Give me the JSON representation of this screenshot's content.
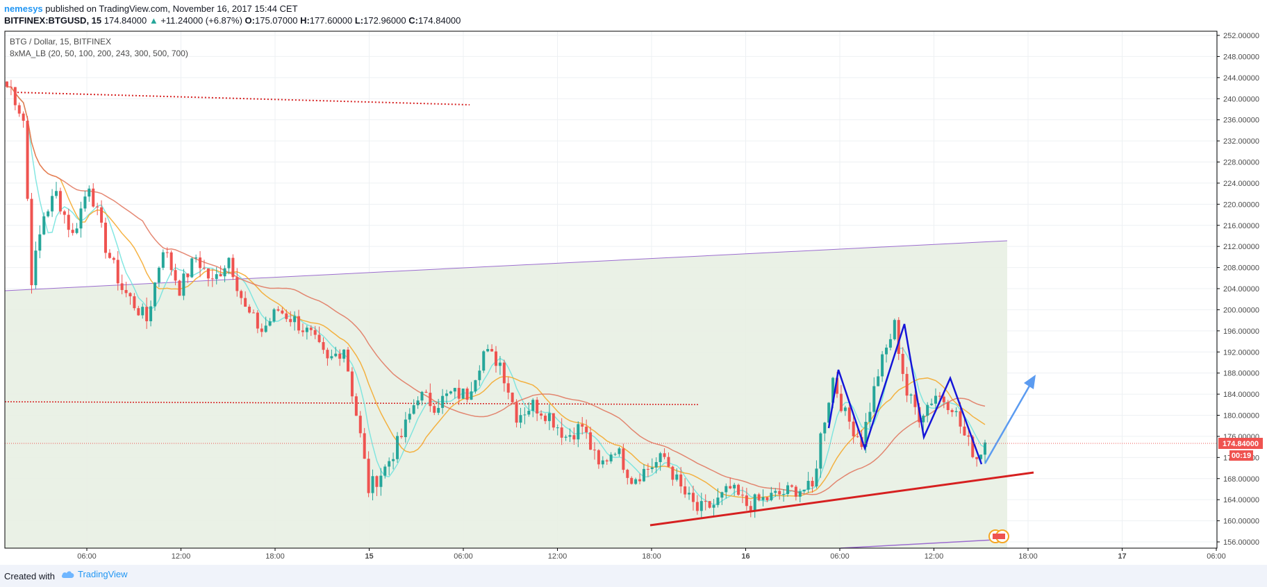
{
  "header": {
    "author": "nemesys",
    "published": "published on TradingView.com, November 16, 2017 15:44 CET",
    "symbol": "BITFINEX:BTGUSD, 15",
    "last": "174.84000",
    "change": "+11.24000 (+6.87%)",
    "o_label": "O:",
    "o": "175.07000",
    "h_label": "H:",
    "h": "177.60000",
    "l_label": "L:",
    "l": "172.96000",
    "c_label": "C:",
    "c": "174.84000"
  },
  "legend": {
    "title": "BTG / Dollar, 15, BITFINEX",
    "indicator": "8xMA_LB (20, 50, 100, 200, 243, 300, 500, 700)"
  },
  "footer": {
    "created_with": "Created with",
    "brand": "TradingView"
  },
  "price_badge": {
    "price": "174.84000",
    "countdown": "00:19"
  },
  "colors": {
    "up_candle": "#26a69a",
    "down_candle": "#ef5350",
    "ma_fast": "#6fe3dd",
    "ma_mid": "#f5a623",
    "ma_slow": "#e0735a",
    "channel": "#9b6ccf",
    "support_line": "#d62020",
    "pattern": "#1515d8",
    "projection": "#5b9bf0",
    "channel_fill": "#e8f0e3"
  },
  "chart_data": {
    "type": "candlestick",
    "title": "BTG / Dollar, 15, BITFINEX",
    "ylim": [
      154,
      253
    ],
    "y_ticks": [
      "156.00000",
      "160.00000",
      "164.00000",
      "168.00000",
      "172.00000",
      "176.00000",
      "180.00000",
      "184.00000",
      "188.00000",
      "192.00000",
      "196.00000",
      "200.00000",
      "204.00000",
      "208.00000",
      "212.00000",
      "216.00000",
      "220.00000",
      "224.00000",
      "228.00000",
      "232.00000",
      "236.00000",
      "240.00000",
      "244.00000",
      "248.00000",
      "252.00000"
    ],
    "x_ticks": [
      "06:00",
      "12:00",
      "18:00",
      "15",
      "06:00",
      "12:00",
      "18:00",
      "16",
      "06:00",
      "12:00",
      "18:00",
      "17",
      "06:00"
    ],
    "grid": true,
    "candle_anchors": [
      {
        "x": 1,
        "price": 242
      },
      {
        "x": 4,
        "price": 236
      },
      {
        "x": 6,
        "price": 206
      },
      {
        "x": 9,
        "price": 218
      },
      {
        "x": 12,
        "price": 222
      },
      {
        "x": 16,
        "price": 214
      },
      {
        "x": 20,
        "price": 224
      },
      {
        "x": 24,
        "price": 212
      },
      {
        "x": 28,
        "price": 204
      },
      {
        "x": 34,
        "price": 198
      },
      {
        "x": 38,
        "price": 212
      },
      {
        "x": 42,
        "price": 204
      },
      {
        "x": 46,
        "price": 210
      },
      {
        "x": 50,
        "price": 205
      },
      {
        "x": 54,
        "price": 210
      },
      {
        "x": 58,
        "price": 200
      },
      {
        "x": 62,
        "price": 196
      },
      {
        "x": 66,
        "price": 200
      },
      {
        "x": 70,
        "price": 198
      },
      {
        "x": 74,
        "price": 195
      },
      {
        "x": 78,
        "price": 190
      },
      {
        "x": 82,
        "price": 193
      },
      {
        "x": 86,
        "price": 176
      },
      {
        "x": 88,
        "price": 166
      },
      {
        "x": 92,
        "price": 170
      },
      {
        "x": 96,
        "price": 176
      },
      {
        "x": 100,
        "price": 184
      },
      {
        "x": 104,
        "price": 182
      },
      {
        "x": 108,
        "price": 184
      },
      {
        "x": 112,
        "price": 184
      },
      {
        "x": 116,
        "price": 192
      },
      {
        "x": 120,
        "price": 190
      },
      {
        "x": 124,
        "price": 180
      },
      {
        "x": 128,
        "price": 182
      },
      {
        "x": 132,
        "price": 180
      },
      {
        "x": 136,
        "price": 176
      },
      {
        "x": 140,
        "price": 178
      },
      {
        "x": 144,
        "price": 170
      },
      {
        "x": 148,
        "price": 174
      },
      {
        "x": 152,
        "price": 168
      },
      {
        "x": 156,
        "price": 170
      },
      {
        "x": 160,
        "price": 172
      },
      {
        "x": 164,
        "price": 166
      },
      {
        "x": 168,
        "price": 162
      },
      {
        "x": 172,
        "price": 163
      },
      {
        "x": 176,
        "price": 166
      },
      {
        "x": 180,
        "price": 163
      },
      {
        "x": 184,
        "price": 164
      },
      {
        "x": 188,
        "price": 165
      },
      {
        "x": 192,
        "price": 166
      },
      {
        "x": 196,
        "price": 166
      },
      {
        "x": 198,
        "price": 176
      },
      {
        "x": 201,
        "price": 187
      },
      {
        "x": 204,
        "price": 180
      },
      {
        "x": 208,
        "price": 175
      },
      {
        "x": 212,
        "price": 188
      },
      {
        "x": 216,
        "price": 197
      },
      {
        "x": 219,
        "price": 184
      },
      {
        "x": 222,
        "price": 180
      },
      {
        "x": 226,
        "price": 184
      },
      {
        "x": 230,
        "price": 182
      },
      {
        "x": 233,
        "price": 176
      },
      {
        "x": 236,
        "price": 172
      },
      {
        "x": 238,
        "price": 174.84
      }
    ]
  }
}
